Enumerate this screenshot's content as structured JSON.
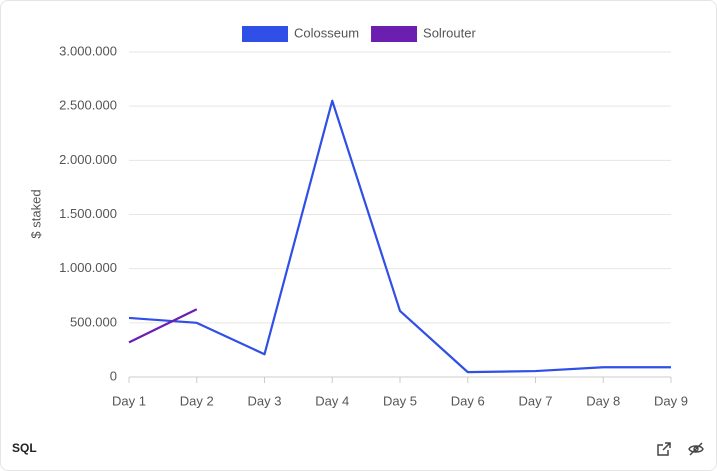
{
  "chart_data": {
    "type": "line",
    "y_label": "$ staked",
    "categories": [
      "Day 1",
      "Day 2",
      "Day 3",
      "Day 4",
      "Day 5",
      "Day 6",
      "Day 7",
      "Day 8",
      "Day 9"
    ],
    "series": [
      {
        "name": "Colosseum",
        "color": "#2f4fe6",
        "values": [
          545000,
          500000,
          210000,
          2550000,
          610000,
          45000,
          55000,
          90000,
          90000
        ]
      },
      {
        "name": "Solrouter",
        "color": "#6a1fb0",
        "values": [
          320000,
          625000,
          null,
          null,
          null,
          null,
          null,
          null,
          null
        ]
      }
    ],
    "ylim": [
      0,
      3000000
    ],
    "yticks": [
      0,
      {
        "value": 500000,
        "label": "500.000"
      },
      {
        "value": 1000000,
        "label": "1.000.000"
      },
      {
        "value": 1500000,
        "label": "1.500.000"
      },
      {
        "value": 2000000,
        "label": "2.000.000"
      },
      {
        "value": 2500000,
        "label": "2.500.000"
      },
      {
        "value": 3000000,
        "label": "3.000.000"
      }
    ],
    "grid": true,
    "legend": "top"
  },
  "footer": {
    "label": "SQL"
  }
}
